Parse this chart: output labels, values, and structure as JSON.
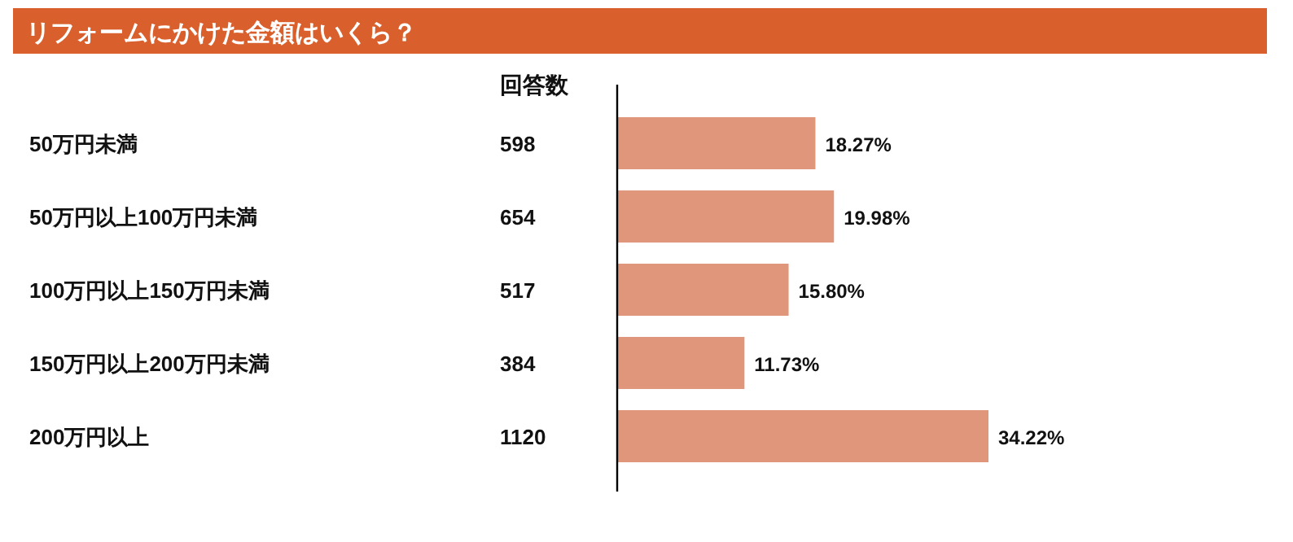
{
  "chart_data": {
    "type": "bar",
    "orientation": "horizontal",
    "title": "リフォームにかけた金額はいくら？",
    "categories": [
      "50万円未満",
      "50万円以上100万円未満",
      "100万円以上150万円未満",
      "150万円以上200万円未満",
      "200万円以上"
    ],
    "series": [
      {
        "color": "#e0967a",
        "values": [
          18.27,
          19.98,
          15.8,
          11.73,
          34.22
        ],
        "value_labels": [
          "18.27%",
          "19.98%",
          "15.80%",
          "11.73%",
          "34.22%"
        ]
      }
    ],
    "annotations": [
      "回答数",
      "598",
      "654",
      "517",
      "384",
      "1120"
    ]
  }
}
